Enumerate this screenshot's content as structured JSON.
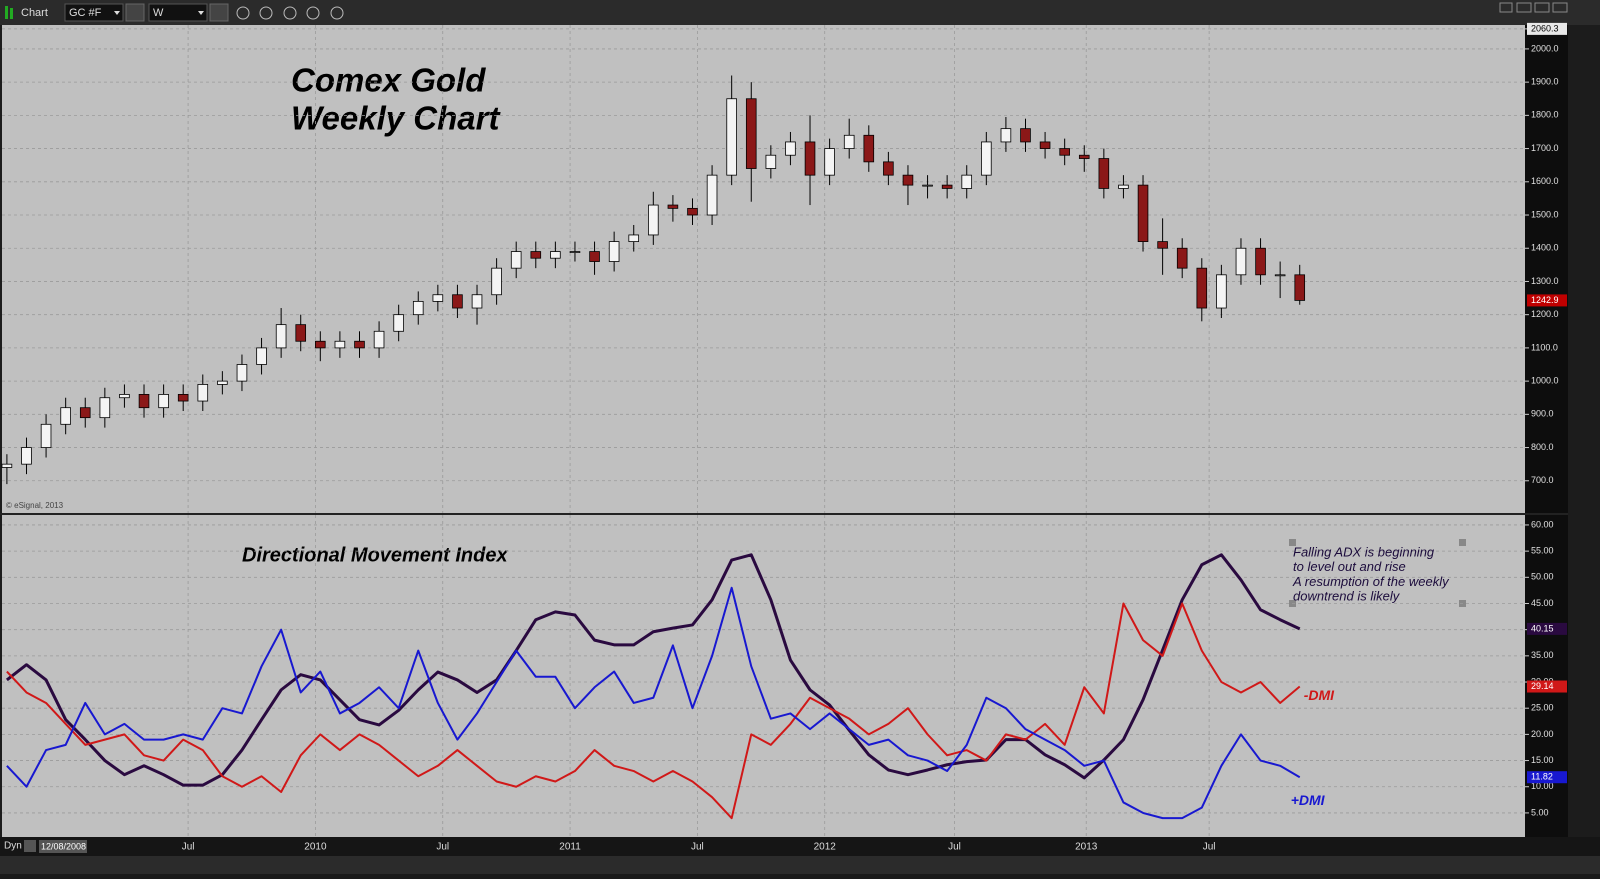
{
  "toolbar": {
    "title": "Chart",
    "symbol": "GC #F",
    "interval": "W"
  },
  "status_bar": {
    "mode": "Dyn",
    "start_date": "12/08/2008"
  },
  "chart_data": [
    {
      "type": "candlestick",
      "title_lines": [
        "Comex Gold",
        "Weekly Chart"
      ],
      "copyright": "© eSignal, 2013",
      "x": [
        0,
        4,
        8,
        12,
        16,
        20,
        24,
        28,
        32,
        36,
        40,
        44,
        48,
        52,
        56,
        60,
        64,
        68,
        72,
        76,
        80,
        84,
        88,
        92,
        96,
        100,
        104,
        108,
        112,
        116,
        120,
        124,
        128,
        132,
        136,
        140,
        144,
        148,
        152,
        156,
        160,
        164,
        168,
        172,
        176,
        180,
        184,
        188,
        192,
        196,
        200,
        204,
        208,
        212,
        216,
        220,
        224,
        228,
        232,
        236,
        240,
        244,
        248,
        252,
        256,
        260,
        264
      ],
      "open": [
        740,
        750,
        800,
        870,
        920,
        890,
        950,
        960,
        920,
        960,
        940,
        990,
        1000,
        1050,
        1100,
        1170,
        1120,
        1100,
        1120,
        1100,
        1150,
        1200,
        1240,
        1260,
        1220,
        1260,
        1340,
        1390,
        1370,
        1390,
        1390,
        1360,
        1420,
        1440,
        1530,
        1520,
        1500,
        1620,
        1850,
        1640,
        1680,
        1720,
        1620,
        1700,
        1740,
        1660,
        1620,
        1590,
        1590,
        1580,
        1620,
        1720,
        1760,
        1720,
        1700,
        1680,
        1670,
        1580,
        1590,
        1420,
        1400,
        1340,
        1220,
        1320,
        1400,
        1320,
        1320
      ],
      "high": [
        780,
        830,
        900,
        950,
        950,
        980,
        990,
        990,
        990,
        990,
        1020,
        1030,
        1080,
        1130,
        1220,
        1200,
        1150,
        1150,
        1150,
        1180,
        1230,
        1270,
        1290,
        1290,
        1290,
        1370,
        1420,
        1420,
        1420,
        1420,
        1420,
        1450,
        1470,
        1570,
        1560,
        1550,
        1650,
        1920,
        1900,
        1710,
        1750,
        1800,
        1730,
        1790,
        1770,
        1690,
        1650,
        1620,
        1620,
        1650,
        1750,
        1795,
        1790,
        1750,
        1730,
        1710,
        1700,
        1620,
        1620,
        1490,
        1430,
        1370,
        1350,
        1430,
        1430,
        1360,
        1350
      ],
      "low": [
        690,
        720,
        770,
        840,
        860,
        860,
        920,
        890,
        890,
        910,
        910,
        960,
        970,
        1020,
        1070,
        1090,
        1060,
        1070,
        1070,
        1070,
        1120,
        1170,
        1210,
        1190,
        1170,
        1230,
        1310,
        1340,
        1340,
        1360,
        1320,
        1330,
        1390,
        1410,
        1480,
        1470,
        1470,
        1590,
        1540,
        1610,
        1650,
        1530,
        1590,
        1670,
        1630,
        1590,
        1530,
        1550,
        1550,
        1550,
        1590,
        1690,
        1690,
        1670,
        1650,
        1630,
        1550,
        1550,
        1390,
        1320,
        1310,
        1180,
        1190,
        1290,
        1290,
        1250,
        1230
      ],
      "close": [
        750,
        800,
        870,
        920,
        890,
        950,
        960,
        920,
        960,
        940,
        990,
        1000,
        1050,
        1100,
        1170,
        1120,
        1100,
        1120,
        1100,
        1150,
        1200,
        1240,
        1260,
        1220,
        1260,
        1340,
        1390,
        1370,
        1390,
        1390,
        1360,
        1420,
        1440,
        1530,
        1520,
        1500,
        1620,
        1850,
        1640,
        1680,
        1720,
        1620,
        1700,
        1740,
        1660,
        1620,
        1590,
        1590,
        1580,
        1620,
        1720,
        1760,
        1720,
        1700,
        1680,
        1670,
        1580,
        1590,
        1420,
        1400,
        1340,
        1220,
        1320,
        1400,
        1320,
        1320,
        1242.9
      ],
      "up_color": "#f4f4f4",
      "down_color": "#8b1818",
      "last_color": "#c00000",
      "xlim": [
        -1,
        310
      ],
      "xticks": [
        {
          "value": 37,
          "label": "Jul"
        },
        {
          "value": 63,
          "label": "2010"
        },
        {
          "value": 89,
          "label": "Jul"
        },
        {
          "value": 115,
          "label": "2011"
        },
        {
          "value": 141,
          "label": "Jul"
        },
        {
          "value": 167,
          "label": "2012"
        },
        {
          "value": 193.5,
          "label": "Jul"
        },
        {
          "value": 220.4,
          "label": "2013"
        },
        {
          "value": 245.5,
          "label": "Jul"
        }
      ],
      "ylim": [
        603,
        2072
      ],
      "yticks": [
        {
          "value": 700,
          "label": "700.0"
        },
        {
          "value": 800,
          "label": "800.0"
        },
        {
          "value": 900,
          "label": "900.0"
        },
        {
          "value": 1000,
          "label": "1000.0"
        },
        {
          "value": 1100,
          "label": "1100.0"
        },
        {
          "value": 1200,
          "label": "1200.0"
        },
        {
          "value": 1300,
          "label": "1300.0"
        },
        {
          "value": 1400,
          "label": "1400.0"
        },
        {
          "value": 1500,
          "label": "1500.0"
        },
        {
          "value": 1600,
          "label": "1600.0"
        },
        {
          "value": 1700,
          "label": "1700.0"
        },
        {
          "value": 1800,
          "label": "1800.0"
        },
        {
          "value": 1900,
          "label": "1900.0"
        },
        {
          "value": 2000,
          "label": "2000.0"
        },
        2060.3
      ],
      "grid": true
    },
    {
      "type": "line",
      "title": "Directional Movement Index",
      "annotation_lines": [
        "Falling ADX is beginning",
        "to level out and rise",
        "A resumption of the weekly",
        "downtrend is likely"
      ],
      "x": [
        0,
        4,
        8,
        12,
        16,
        20,
        24,
        28,
        32,
        36,
        40,
        44,
        48,
        52,
        56,
        60,
        64,
        68,
        72,
        76,
        80,
        84,
        88,
        92,
        96,
        100,
        104,
        108,
        112,
        116,
        120,
        124,
        128,
        132,
        136,
        140,
        144,
        148,
        152,
        156,
        160,
        164,
        168,
        172,
        176,
        180,
        184,
        188,
        192,
        196,
        200,
        204,
        208,
        212,
        216,
        220,
        224,
        228,
        232,
        236,
        240,
        244,
        248,
        252,
        256,
        260,
        264
      ],
      "series": [
        {
          "color": "#2a0a40",
          "values": [
            30.4,
            33.3,
            30.4,
            22.8,
            19,
            15,
            12.3,
            14,
            12.3,
            10.3,
            10.3,
            12.3,
            17,
            22.8,
            28.5,
            31.4,
            30.4,
            26.6,
            22.8,
            21.8,
            24.6,
            28.5,
            31.9,
            30.4,
            28,
            30.4,
            36,
            41.9,
            43.4,
            42.8,
            38,
            37.1,
            37.1,
            39.6,
            40.3,
            40.9,
            45.7,
            53.3,
            54.3,
            45.7,
            34.2,
            28.5,
            25.6,
            20.8,
            16.1,
            13.2,
            12.3,
            13.2,
            14.2,
            14.8,
            15.1,
            19,
            19,
            16.1,
            14.2,
            11.7,
            15.1,
            19,
            26.6,
            36.1,
            45.7,
            52.4,
            54.3,
            49.5,
            43.8,
            41.9,
            40.15
          ]
        },
        {
          "name": "-DMI",
          "color": "#d01818",
          "values": [
            32,
            28,
            26,
            22,
            18,
            19,
            20,
            16,
            15,
            19,
            17,
            12,
            10,
            12,
            9,
            16,
            20,
            17,
            20,
            18,
            15,
            12,
            14,
            17,
            14,
            11,
            10,
            12,
            11,
            13,
            17,
            14,
            13,
            11,
            13,
            11,
            8,
            4,
            20,
            18,
            22,
            27,
            25,
            23,
            20,
            22,
            25,
            20,
            16,
            17,
            15,
            20,
            19,
            22,
            18,
            29,
            24,
            45,
            38,
            35,
            45,
            36,
            30,
            28,
            30,
            26,
            29.14
          ]
        },
        {
          "name": "+DMI",
          "color": "#1818d0",
          "values": [
            14,
            10,
            17,
            18,
            26,
            20,
            22,
            19,
            19,
            20,
            19,
            25,
            24,
            33,
            40,
            28,
            32,
            24,
            26,
            29,
            25,
            36,
            26,
            19,
            24,
            30,
            36,
            31,
            31,
            25,
            29,
            32,
            26,
            27,
            37,
            25,
            35,
            48,
            33,
            23,
            24,
            21,
            24,
            21,
            18,
            19,
            16,
            15,
            13,
            18,
            27,
            25,
            21,
            19,
            17,
            14,
            15,
            7,
            5,
            4,
            4,
            6,
            14,
            20,
            15,
            14,
            11.82
          ]
        }
      ],
      "xlim": [
        -1,
        310
      ],
      "ylim": [
        0.4,
        61.9
      ],
      "yticks": [
        {
          "value": 5,
          "label": "5.00"
        },
        {
          "value": 10,
          "label": "10.00"
        },
        {
          "value": 15,
          "label": "15.00"
        },
        {
          "value": 20,
          "label": "20.00"
        },
        {
          "value": 25,
          "label": "25.00"
        },
        {
          "value": 30,
          "label": "30.00"
        },
        {
          "value": 35,
          "label": "35.00"
        },
        {
          "value": 40,
          "label": "40.00"
        },
        {
          "value": 45,
          "label": "45.00"
        },
        {
          "value": 50,
          "label": "50.00"
        },
        {
          "value": 55,
          "label": "55.00"
        },
        {
          "value": 60,
          "label": "60.00"
        }
      ],
      "grid": true
    }
  ]
}
